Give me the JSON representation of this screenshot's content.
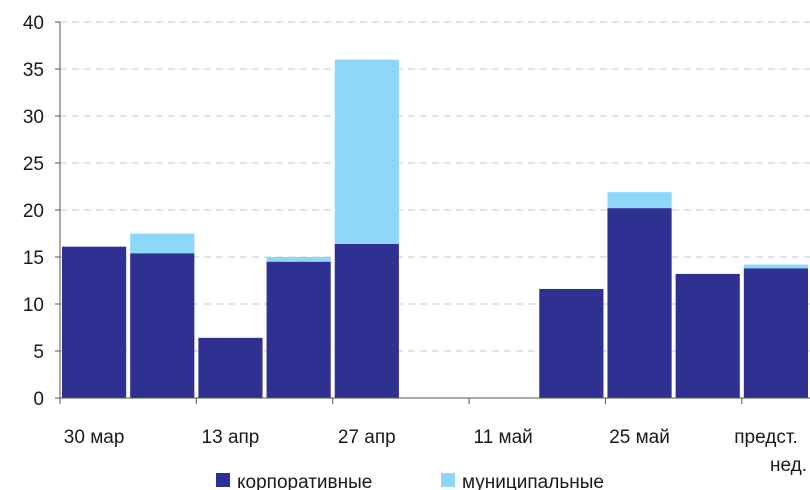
{
  "chart_data": {
    "type": "bar",
    "stacked": true,
    "title": "",
    "xlabel": "",
    "ylabel": "",
    "ylim": [
      0,
      40
    ],
    "yticks": [
      "0",
      "5",
      "10",
      "15",
      "20",
      "25",
      "30",
      "35",
      "40"
    ],
    "grid": true,
    "legend_position": "bottom",
    "x_tick_labels": [
      "30 мар",
      "13 апр",
      "27 апр",
      "11 май",
      "25 май",
      "предст. нед."
    ],
    "categories": [
      "30 мар",
      "",
      "13 апр",
      "",
      "27 апр",
      "",
      "11 май",
      "",
      "25 май",
      "",
      "предст. нед."
    ],
    "series": [
      {
        "name": "корпоративные",
        "color": "#2e3192",
        "values": [
          16.1,
          15.4,
          6.4,
          14.5,
          16.4,
          0,
          0,
          11.6,
          20.2,
          13.2,
          13.8
        ]
      },
      {
        "name": "муниципальные",
        "color": "#8dd8f8",
        "values": [
          0,
          2.1,
          0,
          0.5,
          19.6,
          0,
          0,
          0,
          1.7,
          0,
          0.4
        ]
      }
    ]
  }
}
